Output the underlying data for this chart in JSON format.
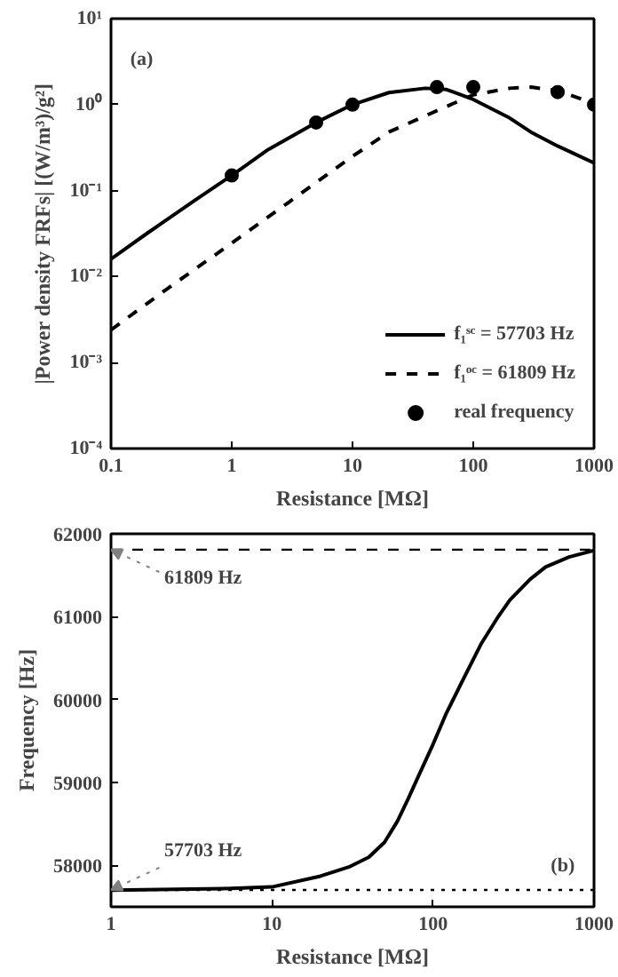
{
  "chart_data": [
    {
      "type": "line",
      "xlabel": "Resistance [MΩ]",
      "ylabel": "|Power density FRFs| [(W/m³)/g²]",
      "log": "xy",
      "xlim": [
        0.1,
        1000
      ],
      "ylim": [
        0.0001,
        10
      ],
      "xticks": [
        0.1,
        1,
        10,
        100,
        1000
      ],
      "yticks": [
        {
          "value": 0.0001,
          "label": "10⁻⁴"
        },
        {
          "value": 0.001,
          "label": "10⁻³"
        },
        {
          "value": 0.01,
          "label": "10⁻²"
        },
        {
          "value": 0.1,
          "label": "10⁻¹"
        },
        {
          "value": 1,
          "label": "10⁰"
        },
        {
          "value": 10,
          "label": "10¹"
        }
      ],
      "legend": "bottom right",
      "grid": false,
      "annotations": [
        "(a)"
      ],
      "series": [
        {
          "name": "f₁ˢᶜ = 57703 Hz",
          "line_style": "solid",
          "color": "#000000",
          "x": [
            0.1,
            0.2,
            0.5,
            1,
            2,
            5,
            10,
            20,
            40,
            60,
            100,
            200,
            300,
            500,
            1000
          ],
          "values": [
            0.016,
            0.032,
            0.078,
            0.15,
            0.3,
            0.62,
            1.0,
            1.38,
            1.55,
            1.5,
            1.15,
            0.7,
            0.48,
            0.33,
            0.21
          ]
        },
        {
          "name": "f₁ᵒᶜ = 61809 Hz",
          "line_style": "dashed",
          "color": "#000000",
          "x": [
            0.1,
            0.3,
            1,
            3,
            10,
            20,
            50,
            100,
            200,
            300,
            500,
            1000
          ],
          "values": [
            0.0024,
            0.0074,
            0.0245,
            0.074,
            0.25,
            0.48,
            0.85,
            1.3,
            1.55,
            1.6,
            1.45,
            1.03
          ]
        },
        {
          "name": "real frequency",
          "type": "scatter",
          "marker": "circle",
          "color": "#000000",
          "x": [
            1,
            5,
            10,
            50,
            100,
            500,
            1000
          ],
          "values": [
            0.15,
            0.62,
            1.0,
            1.6,
            1.6,
            1.4,
            1.0
          ]
        }
      ]
    },
    {
      "type": "line",
      "xlabel": "Resistance [MΩ]",
      "ylabel": "Frequency [Hz]",
      "log": "x",
      "xlim": [
        1,
        1000
      ],
      "ylim": [
        57500,
        62000
      ],
      "xticks": [
        1,
        10,
        100,
        1000
      ],
      "yticks": [
        58000,
        59000,
        60000,
        61000,
        62000
      ],
      "legend": false,
      "grid": false,
      "annotations": [
        "(b)",
        {
          "text": "61809 Hz",
          "x": 1,
          "y": 61809
        },
        {
          "text": "57703 Hz",
          "x": 1,
          "y": 57703
        }
      ],
      "ref_lines": [
        {
          "axis": "y",
          "value": 61809,
          "line_style": "dashed",
          "color": "#000000"
        },
        {
          "axis": "y",
          "value": 57703,
          "line_style": "dotted",
          "color": "#000000"
        }
      ],
      "series": [
        {
          "line_style": "solid",
          "color": "#000000",
          "x": [
            1,
            5,
            10,
            20,
            30,
            40,
            50,
            60,
            70,
            80,
            100,
            120,
            150,
            200,
            250,
            300,
            400,
            500,
            700,
            1000
          ],
          "values": [
            57700,
            57720,
            57740,
            57870,
            57980,
            58100,
            58280,
            58530,
            58800,
            59050,
            59460,
            59820,
            60200,
            60680,
            60980,
            61200,
            61450,
            61600,
            61720,
            61800
          ]
        }
      ]
    }
  ]
}
